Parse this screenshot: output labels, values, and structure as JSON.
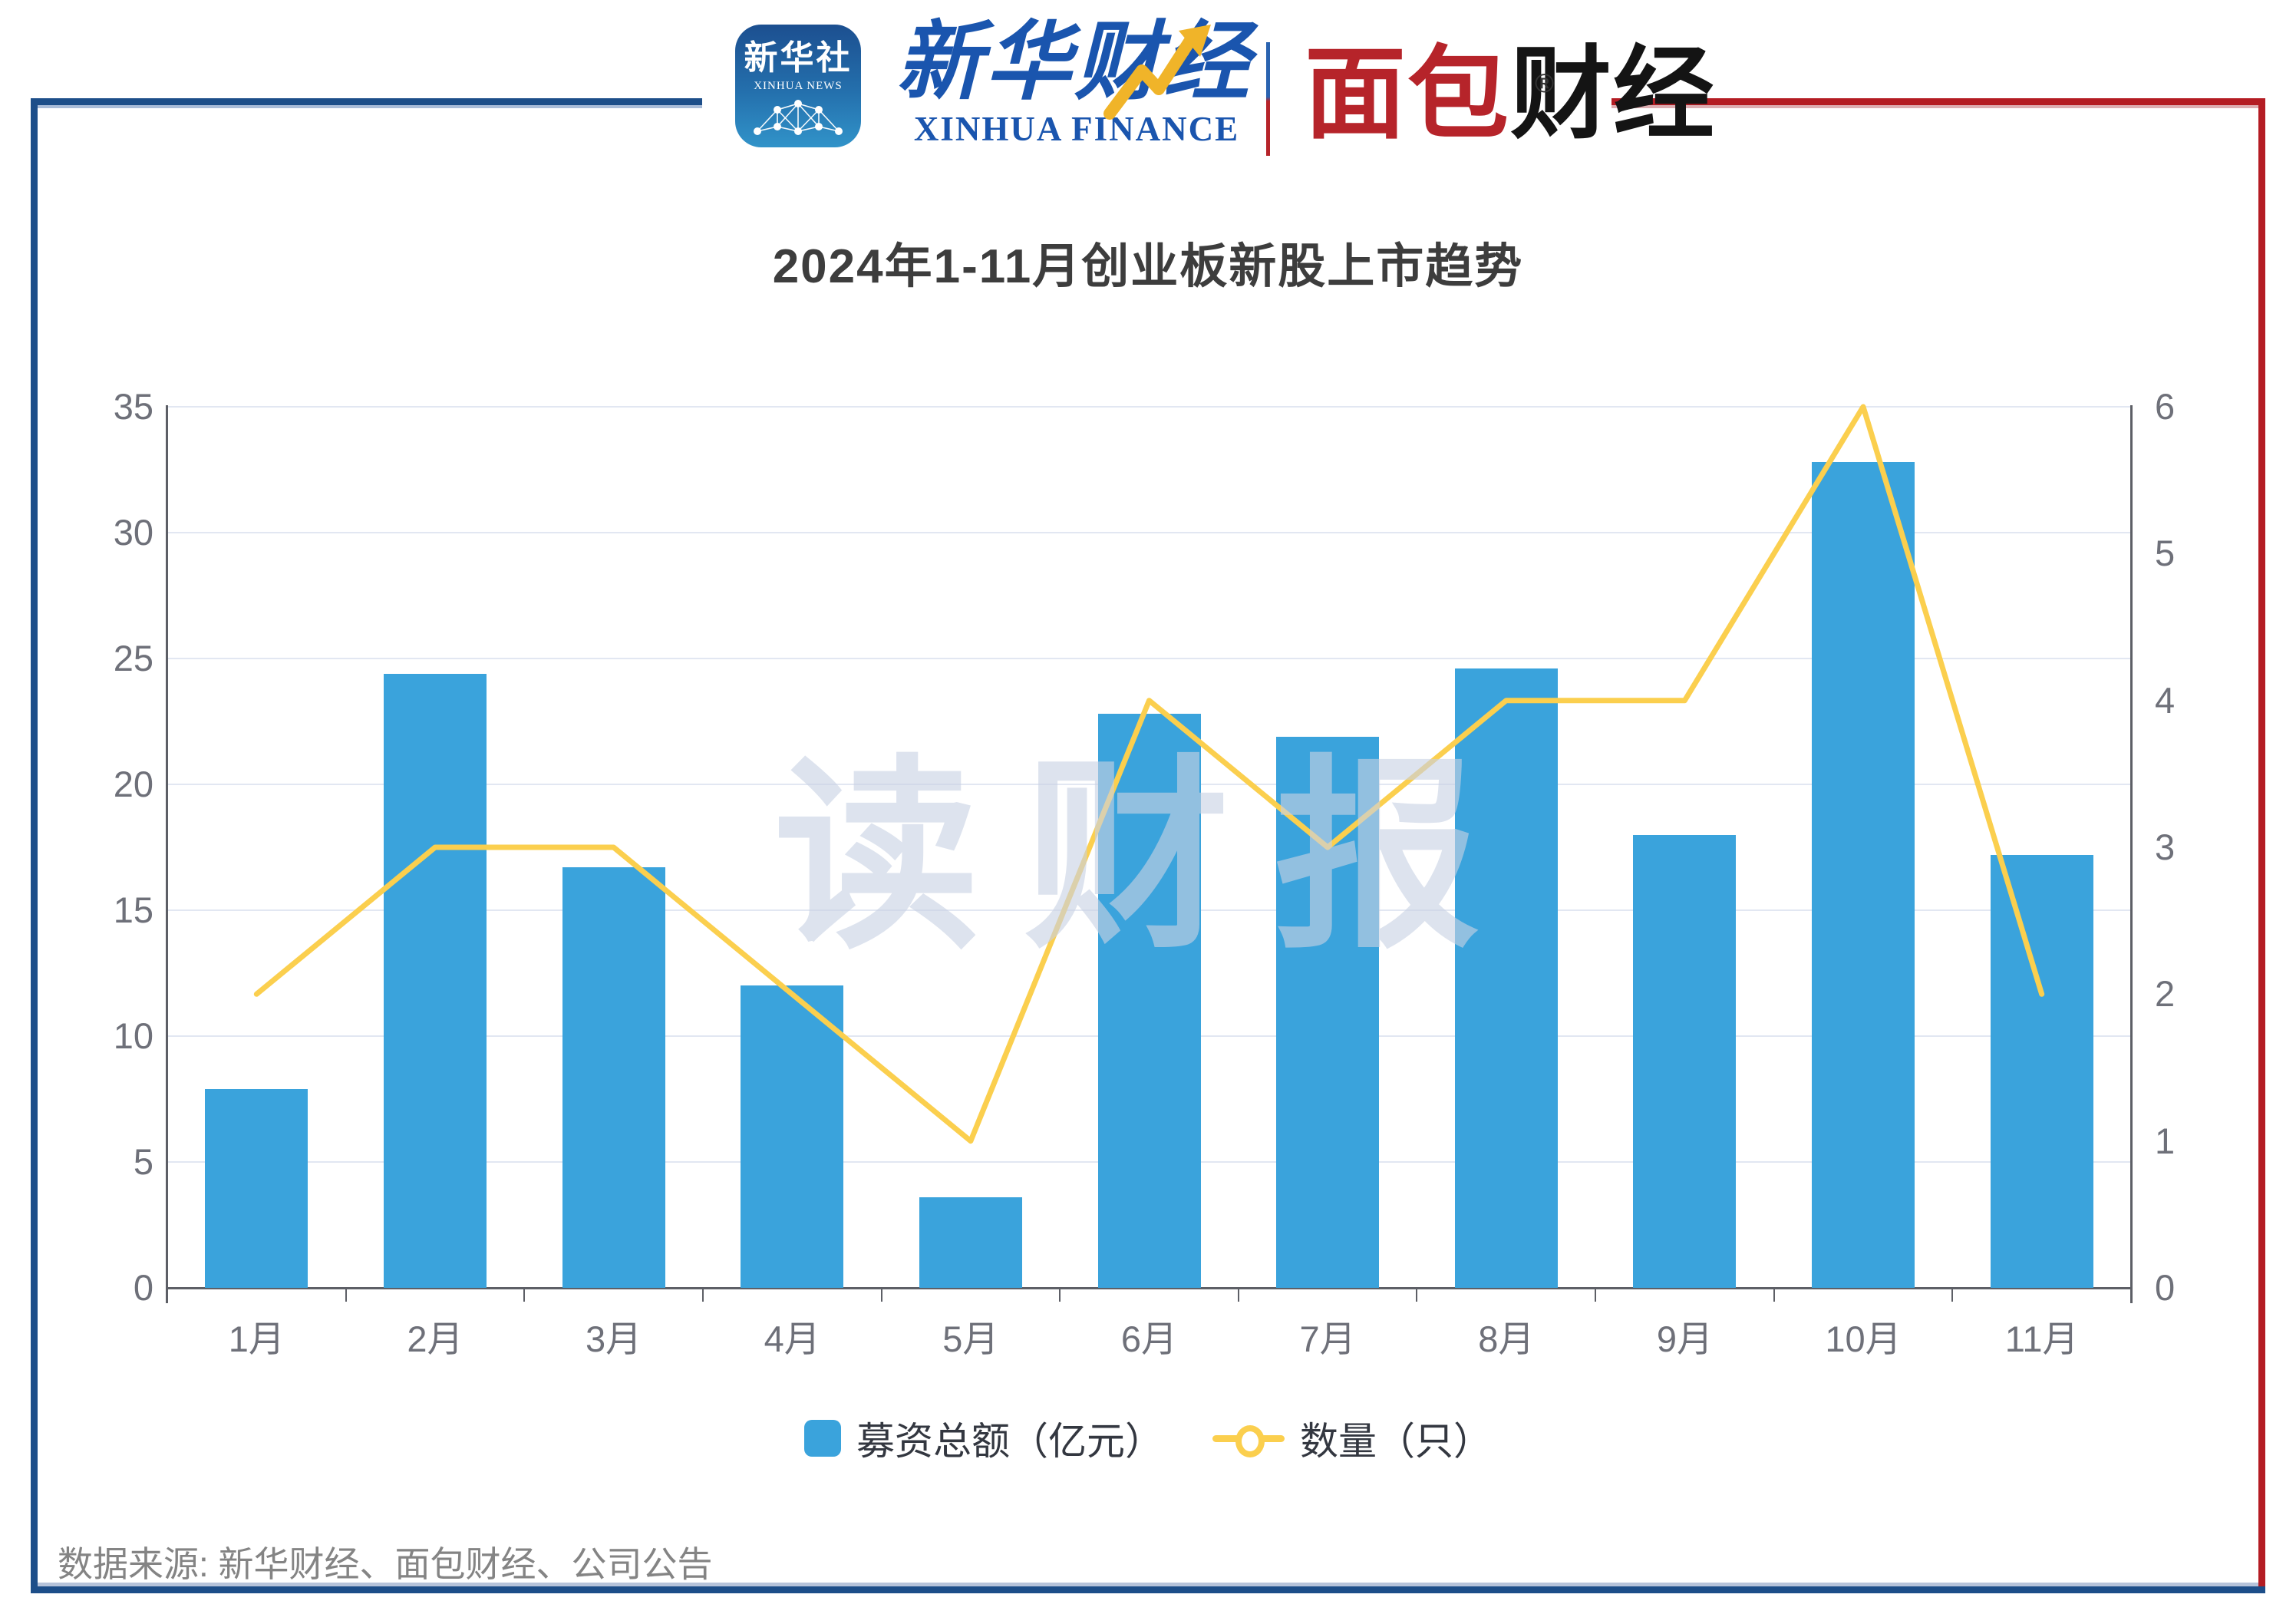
{
  "header": {
    "xinhua_icon": {
      "cn": "新华社",
      "en": "XINHUA NEWS"
    },
    "xinhua_finance": {
      "cn": "新华财经",
      "en": "XINHUA FINANCE"
    },
    "mianbao": {
      "cn_red": "面包",
      "cn_black": "财经",
      "reg": "®"
    }
  },
  "title": "2024年1-11月创业板新股上市趋势",
  "watermark": "读财报",
  "legend": {
    "bar_label": "募资总额（亿元）",
    "line_label": "数量（只）"
  },
  "footer": {
    "source": "数据来源: 新华财经、面包财经、公司公告"
  },
  "colors": {
    "bar": "#3aa3dc",
    "line": "#fbcf4e",
    "frame_blue": "#1d4e89",
    "frame_red": "#b41c23",
    "grid": "#e2e7f2",
    "axis": "#5d5f66",
    "label": "#6e7079",
    "title": "#3d3d3d",
    "watermark": "#c9d2e4",
    "legend_text": "#333740",
    "footer": "#848484",
    "logo_blue": "#1a55ae",
    "logo_red": "#b6242a"
  },
  "chart_data": {
    "type": "bar",
    "subtype": "bar+line dual-axis",
    "title": "2024年1-11月创业板新股上市趋势",
    "categories": [
      "1月",
      "2月",
      "3月",
      "4月",
      "5月",
      "6月",
      "7月",
      "8月",
      "9月",
      "10月",
      "11月"
    ],
    "series": [
      {
        "name": "募资总额（亿元）",
        "type": "bar",
        "axis": "left",
        "values": [
          7.9,
          24.4,
          16.7,
          12.0,
          3.6,
          22.8,
          21.9,
          24.6,
          18.0,
          32.8,
          17.2
        ]
      },
      {
        "name": "数量（只）",
        "type": "line",
        "axis": "right",
        "values": [
          2,
          3,
          3,
          2,
          1,
          4,
          3,
          4,
          4,
          6,
          2
        ]
      }
    ],
    "left_axis": {
      "ticks": [
        35,
        30,
        25,
        20,
        15,
        10,
        5,
        0
      ],
      "min": 0,
      "max": 35
    },
    "right_axis": {
      "ticks": [
        6,
        5,
        4,
        3,
        2,
        1,
        0
      ],
      "min": 0,
      "max": 6
    },
    "grid": true,
    "legend_position": "bottom",
    "xlabel": "",
    "ylabel_left": "",
    "ylabel_right": ""
  }
}
